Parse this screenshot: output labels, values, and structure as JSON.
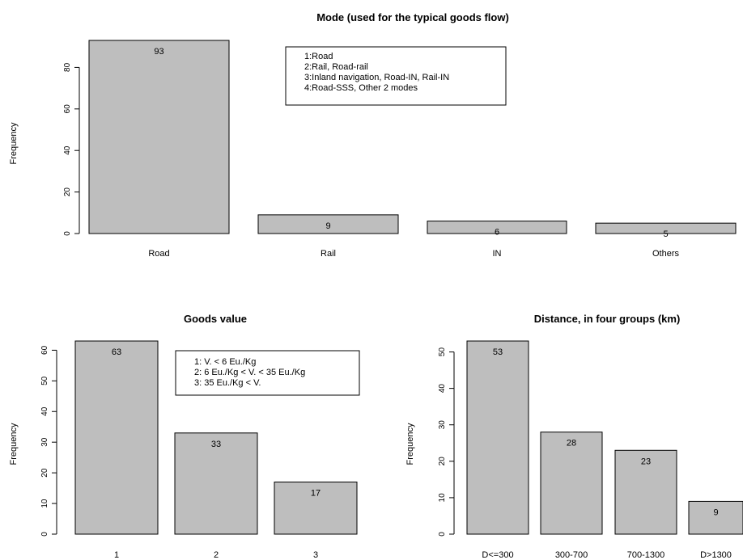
{
  "chart_data": [
    {
      "type": "bar",
      "title": "Mode (used for the typical goods flow)",
      "ylabel": "Frequency",
      "categories": [
        "Road",
        "Rail",
        "IN",
        "Others"
      ],
      "values": [
        93,
        9,
        6,
        5
      ],
      "data_labels": [
        "93",
        "9",
        "6",
        "5"
      ],
      "yticks": [
        "0",
        "20",
        "40",
        "60",
        "80"
      ],
      "ylim": [
        0,
        93
      ],
      "legend": [
        "1:Road",
        "2:Rail, Road-rail",
        "3:Inland navigation, Road-IN, Rail-IN",
        "4:Road-SSS, Other 2 modes"
      ],
      "bar_color": "#bebebe"
    },
    {
      "type": "bar",
      "title": "Goods value",
      "ylabel": "Frequency",
      "categories": [
        "1",
        "2",
        "3"
      ],
      "values": [
        63,
        33,
        17
      ],
      "data_labels": [
        "63",
        "33",
        "17"
      ],
      "yticks": [
        "0",
        "10",
        "20",
        "30",
        "40",
        "50",
        "60"
      ],
      "ylim": [
        0,
        63
      ],
      "legend": [
        "1: V. < 6 Eu./Kg",
        "2: 6 Eu./Kg < V. < 35 Eu./Kg",
        "3: 35 Eu./Kg < V."
      ],
      "bar_color": "#bebebe"
    },
    {
      "type": "bar",
      "title": "Distance, in four groups (km)",
      "ylabel": "Frequency",
      "categories": [
        "D<=300",
        "300-700",
        "700-1300",
        "D>1300"
      ],
      "values": [
        53,
        28,
        23,
        9
      ],
      "data_labels": [
        "53",
        "28",
        "23",
        "9"
      ],
      "yticks": [
        "0",
        "10",
        "20",
        "30",
        "40",
        "50"
      ],
      "ylim": [
        0,
        53
      ],
      "legend": [],
      "bar_color": "#bebebe"
    }
  ]
}
